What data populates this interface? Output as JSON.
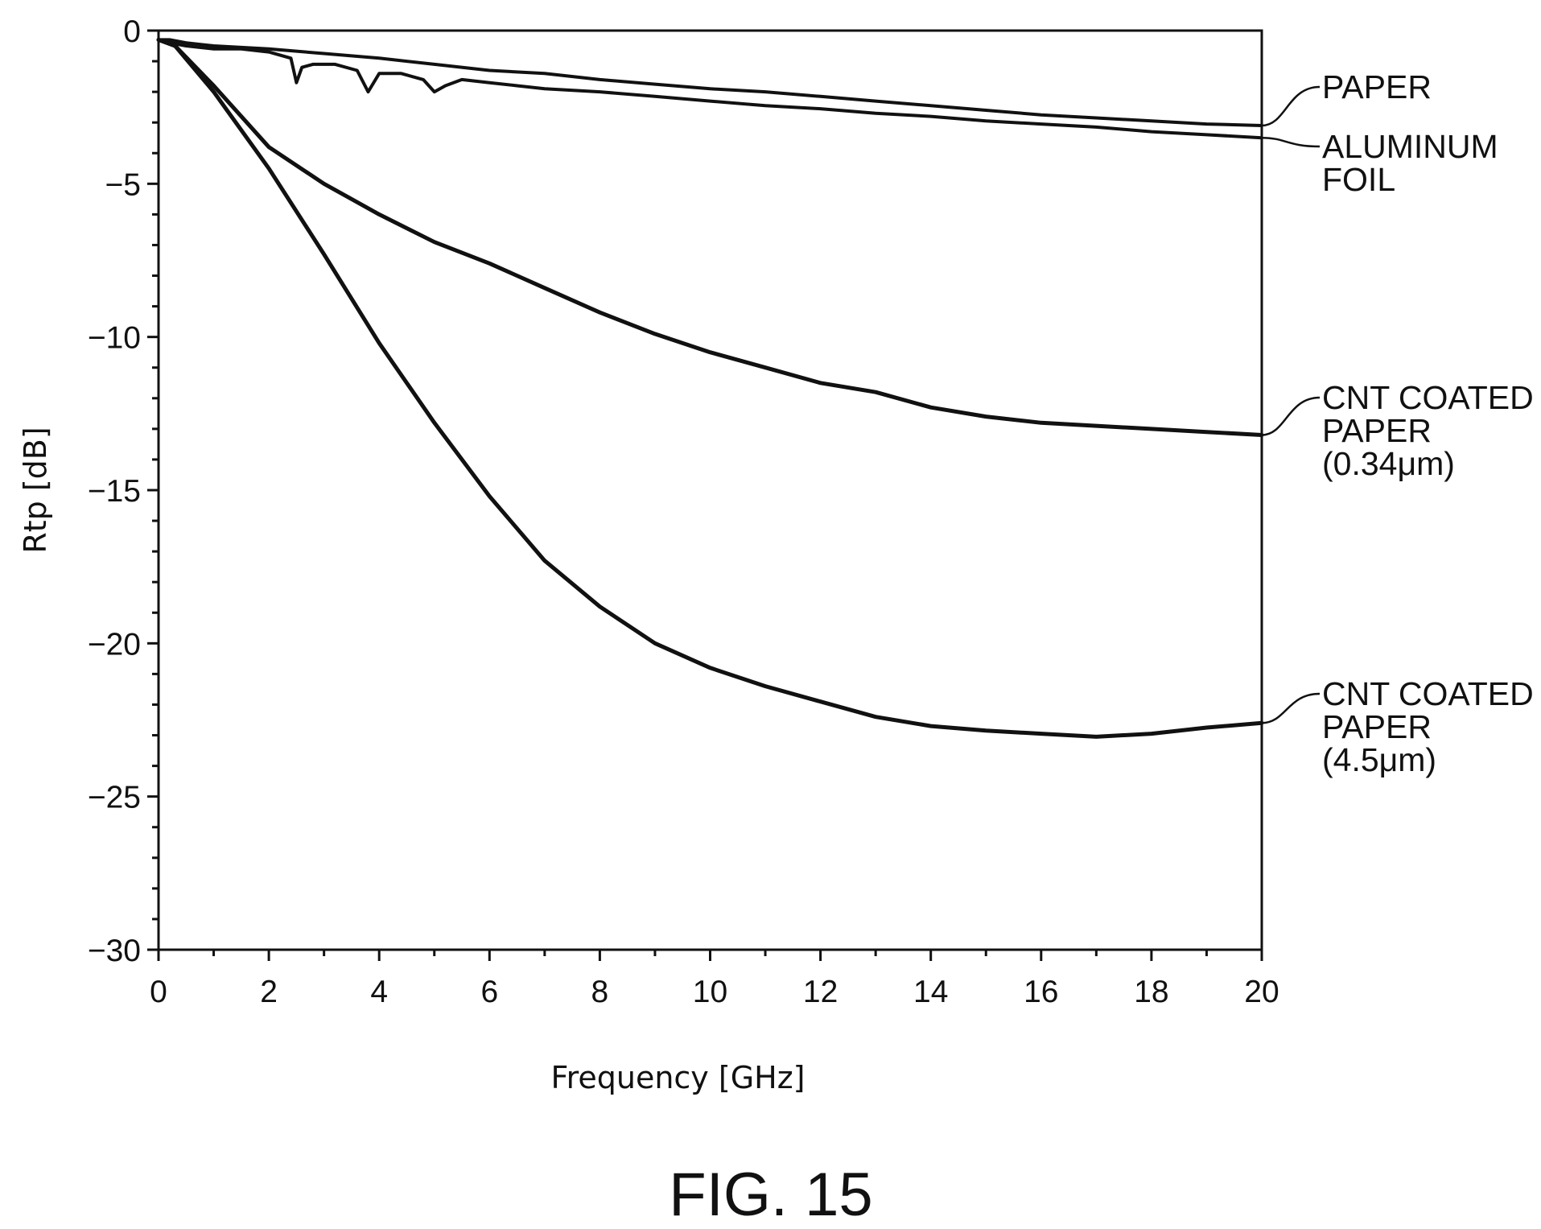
{
  "chart_data": {
    "type": "line",
    "xlabel": "Frequency [GHz]",
    "ylabel": "Rtp [dB]",
    "xlim": [
      0,
      20
    ],
    "ylim": [
      -30,
      0
    ],
    "x_ticks": [
      0,
      2,
      4,
      6,
      8,
      10,
      12,
      14,
      16,
      18,
      20
    ],
    "y_ticks": [
      0,
      -5,
      -10,
      -15,
      -20,
      -25,
      -30
    ],
    "x_tick_labels": [
      "0",
      "2",
      "4",
      "6",
      "8",
      "10",
      "12",
      "14",
      "16",
      "18",
      "20"
    ],
    "y_tick_labels": [
      "0",
      "-5",
      "-10",
      "-15",
      "-20",
      "-25",
      "-30"
    ],
    "x_minor_step": 1,
    "y_minor_step": 1,
    "grid": false,
    "legend": "direct labels at right end of each curve",
    "line_color": "#111111",
    "series": [
      {
        "name": "PAPER",
        "label_lines": [
          "PAPER"
        ],
        "x": [
          0,
          0.2,
          0.5,
          1,
          2,
          3,
          4,
          5,
          6,
          7,
          8,
          9,
          10,
          11,
          12,
          13,
          14,
          15,
          16,
          17,
          18,
          19,
          20
        ],
        "y": [
          -0.3,
          -0.3,
          -0.4,
          -0.5,
          -0.6,
          -0.75,
          -0.9,
          -1.1,
          -1.3,
          -1.4,
          -1.6,
          -1.75,
          -1.9,
          -2.0,
          -2.15,
          -2.3,
          -2.45,
          -2.6,
          -2.75,
          -2.85,
          -2.95,
          -3.05,
          -3.1
        ]
      },
      {
        "name": "ALUMINUM FOIL",
        "label_lines": [
          "ALUMINUM",
          "FOIL"
        ],
        "x": [
          0,
          0.2,
          0.5,
          1,
          1.5,
          2,
          2.4,
          2.5,
          2.6,
          2.8,
          3.2,
          3.6,
          3.8,
          4.0,
          4.4,
          4.8,
          5.0,
          5.2,
          5.5,
          6,
          6.5,
          7,
          8,
          9,
          10,
          11,
          12,
          13,
          14,
          15,
          16,
          17,
          18,
          19,
          20
        ],
        "y": [
          -0.3,
          -0.4,
          -0.5,
          -0.6,
          -0.6,
          -0.7,
          -0.9,
          -1.7,
          -1.2,
          -1.1,
          -1.1,
          -1.3,
          -2.0,
          -1.4,
          -1.4,
          -1.6,
          -2.0,
          -1.8,
          -1.6,
          -1.7,
          -1.8,
          -1.9,
          -2.0,
          -2.15,
          -2.3,
          -2.45,
          -2.55,
          -2.7,
          -2.8,
          -2.95,
          -3.05,
          -3.15,
          -3.3,
          -3.4,
          -3.5
        ]
      },
      {
        "name": "CNT COATED PAPER (0.34μm)",
        "label_lines": [
          "CNT COATED",
          "PAPER",
          "(0.34μm)"
        ],
        "x": [
          0,
          0.3,
          1,
          2,
          3,
          4,
          5,
          6,
          7,
          8,
          9,
          10,
          11,
          12,
          13,
          14,
          15,
          16,
          17,
          18,
          19,
          20
        ],
        "y": [
          -0.3,
          -0.5,
          -1.8,
          -3.8,
          -5.0,
          -6.0,
          -6.9,
          -7.6,
          -8.4,
          -9.2,
          -9.9,
          -10.5,
          -11.0,
          -11.5,
          -11.8,
          -12.3,
          -12.6,
          -12.8,
          -12.9,
          -13.0,
          -13.1,
          -13.2
        ]
      },
      {
        "name": "CNT COATED PAPER (4.5μm)",
        "label_lines": [
          "CNT COATED",
          "PAPER",
          "(4.5μm)"
        ],
        "x": [
          0,
          0.3,
          1,
          2,
          3,
          4,
          5,
          6,
          7,
          8,
          9,
          10,
          11,
          12,
          13,
          14,
          15,
          16,
          17,
          18,
          19,
          20
        ],
        "y": [
          -0.3,
          -0.5,
          -2.0,
          -4.5,
          -7.3,
          -10.2,
          -12.8,
          -15.2,
          -17.3,
          -18.8,
          -20.0,
          -20.8,
          -21.4,
          -21.9,
          -22.4,
          -22.7,
          -22.85,
          -22.95,
          -23.05,
          -22.95,
          -22.75,
          -22.6
        ]
      }
    ]
  },
  "figure_caption": "FIG. 15"
}
